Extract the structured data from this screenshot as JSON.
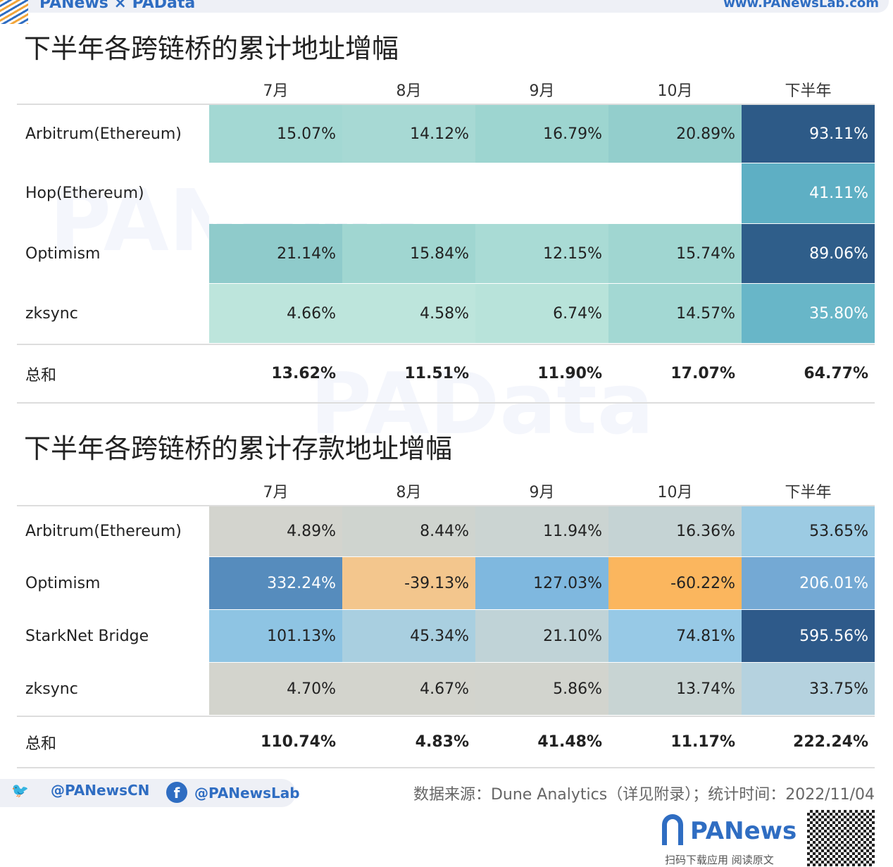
{
  "header": {
    "brand": "PANews × PAData",
    "url": "www.PANewsLab.com"
  },
  "watermarks": [
    "PANews",
    "PAData"
  ],
  "chart_data": [
    {
      "type": "table",
      "title": "下半年各跨链桥的累计地址增幅",
      "columns": [
        "7月",
        "8月",
        "9月",
        "10月",
        "下半年"
      ],
      "rows": [
        {
          "label": "Arbitrum(Ethereum)",
          "values": [
            "15.07%",
            "14.12%",
            "16.79%",
            "20.89%",
            "93.11%"
          ],
          "colors": [
            "#a3d8d3",
            "#a7d9d4",
            "#9dd5d0",
            "#93cecc",
            "#2d5a87"
          ]
        },
        {
          "label": "Hop(Ethereum)",
          "values": [
            "",
            "",
            "",
            "",
            "41.11%"
          ],
          "colors": [
            "#ffffff",
            "#ffffff",
            "#ffffff",
            "#ffffff",
            "#5eafc4"
          ]
        },
        {
          "label": "Optimism",
          "values": [
            "21.14%",
            "15.84%",
            "12.15%",
            "15.74%",
            "89.06%"
          ],
          "colors": [
            "#8fcbcb",
            "#a0d6d1",
            "#a9dbd5",
            "#a0d6d1",
            "#2f5e8a"
          ]
        },
        {
          "label": "zksync",
          "values": [
            "4.66%",
            "4.58%",
            "6.74%",
            "14.57%",
            "35.80%"
          ],
          "colors": [
            "#bde5dc",
            "#bde5dc",
            "#b8e3da",
            "#a3d8d3",
            "#68b6c8"
          ]
        }
      ],
      "total": {
        "label": "总和",
        "values": [
          "13.62%",
          "11.51%",
          "11.90%",
          "17.07%",
          "64.77%"
        ]
      }
    },
    {
      "type": "table",
      "title": "下半年各跨链桥的累计存款地址增幅",
      "columns": [
        "7月",
        "8月",
        "9月",
        "10月",
        "下半年"
      ],
      "rows": [
        {
          "label": "Arbitrum(Ethereum)",
          "values": [
            "4.89%",
            "8.44%",
            "11.94%",
            "16.36%",
            "53.65%"
          ],
          "colors": [
            "#d3d4ce",
            "#cfd4cf",
            "#cbd4d2",
            "#c5d3d4",
            "#9ccbe3"
          ]
        },
        {
          "label": "Optimism",
          "values": [
            "332.24%",
            "-39.13%",
            "127.03%",
            "-60.22%",
            "206.01%"
          ],
          "colors": [
            "#568cbd",
            "#f3c68d",
            "#7fb8df",
            "#fbb65e",
            "#74a9d4"
          ]
        },
        {
          "label": "StarkNet Bridge",
          "values": [
            "101.13%",
            "45.34%",
            "21.10%",
            "74.81%",
            "595.56%"
          ],
          "colors": [
            "#8ec4e3",
            "#a9cfe0",
            "#c0d3d7",
            "#97c9e6",
            "#2e5a8a"
          ]
        },
        {
          "label": "zksync",
          "values": [
            "4.70%",
            "4.67%",
            "5.86%",
            "13.74%",
            "33.75%"
          ],
          "colors": [
            "#d3d4cd",
            "#d3d4cd",
            "#d2d4ce",
            "#c8d4d3",
            "#b5d2df"
          ]
        }
      ],
      "total": {
        "label": "总和",
        "values": [
          "110.74%",
          "4.83%",
          "41.48%",
          "11.17%",
          "222.24%"
        ]
      }
    }
  ],
  "footer": {
    "twitter": "@PANewsCN",
    "facebook": "@PANewsLab",
    "source": "数据来源：Dune Analytics（详见附录）；统计时间：2022/11/04",
    "logo": "PANews",
    "scan": "扫码下载应用 阅读原文"
  }
}
